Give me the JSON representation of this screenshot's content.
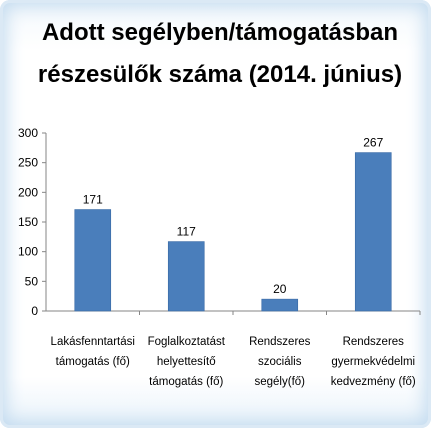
{
  "chart_data": {
    "type": "bar",
    "title_lines": [
      "Adott segélyben/támogatásban",
      "részesülők száma (2014. június)"
    ],
    "categories": [
      [
        "Lakásfenntartási",
        "támogatás (fő)"
      ],
      [
        "Foglalkoztatást",
        "helyettesítő",
        "támogatás (fő)"
      ],
      [
        "Rendszeres",
        "szociális",
        "segély(fő)"
      ],
      [
        "Rendszeres",
        "gyermekvédelmi",
        "kedvezmény (fő)"
      ]
    ],
    "values": [
      171,
      117,
      20,
      267
    ],
    "data_labels": [
      "171",
      "117",
      "20",
      "267"
    ],
    "ylim": [
      0,
      300
    ],
    "yticks": [
      "0",
      "50",
      "100",
      "150",
      "200",
      "250",
      "300"
    ],
    "grid": false,
    "legend": "none",
    "bar_color": "#4a7ebb"
  }
}
